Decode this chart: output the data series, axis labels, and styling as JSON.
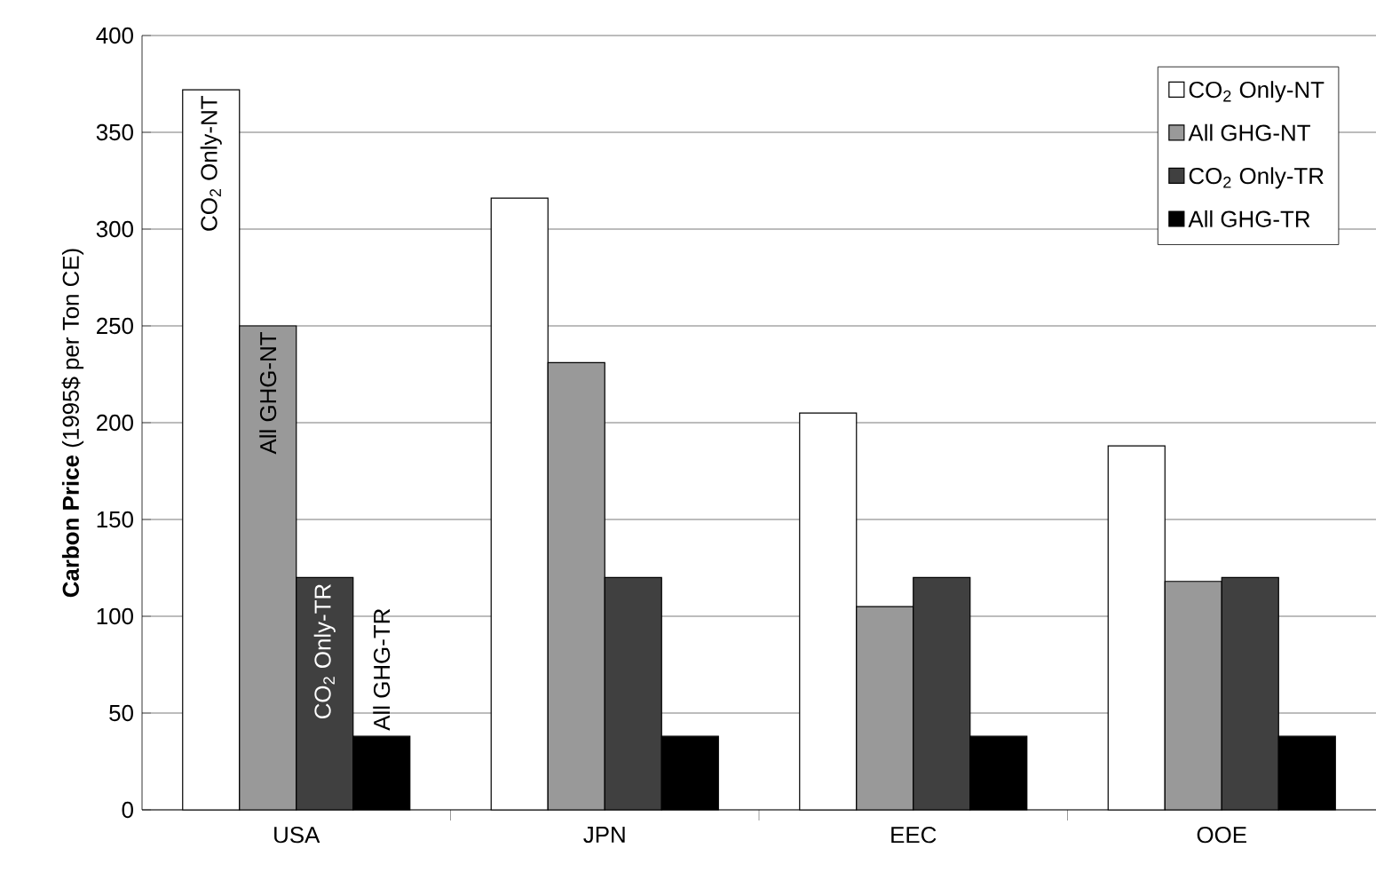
{
  "chart_data": {
    "type": "bar",
    "ylabel": "**Carbon Price** (1995$ per Ton CE)",
    "categories": [
      "USA",
      "JPN",
      "EEC",
      "OOE"
    ],
    "series": [
      {
        "name": "CO$_{2}$ Only-NT",
        "color": "#ffffff",
        "values": [
          372,
          316,
          205,
          188
        ]
      },
      {
        "name": "All GHG-NT",
        "color": "#999999",
        "values": [
          250,
          231,
          105,
          118
        ]
      },
      {
        "name": "CO$_{2}$ Only-TR",
        "color": "#404040",
        "values": [
          120,
          120,
          120,
          120
        ]
      },
      {
        "name": "All GHG-TR",
        "color": "#000000",
        "values": [
          38,
          38,
          38,
          38
        ]
      }
    ],
    "ylim": [
      0,
      400
    ],
    "yticks": [
      0,
      50,
      100,
      150,
      200,
      250,
      300,
      350,
      400
    ],
    "grid": "y",
    "legend": "top right"
  }
}
